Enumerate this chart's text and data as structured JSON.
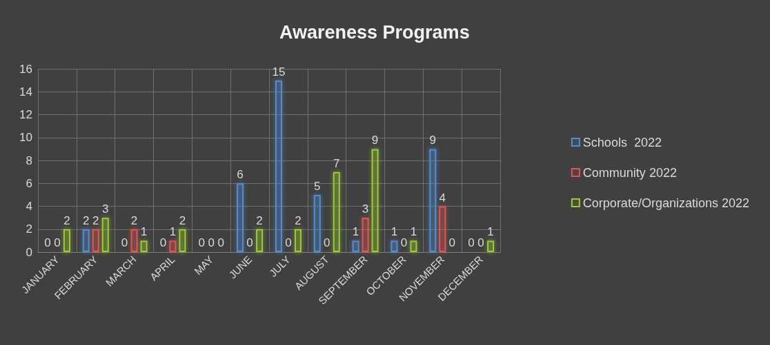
{
  "chart_data": {
    "type": "bar",
    "title": "Awareness Programs",
    "categories": [
      "JANUARY",
      "FEBRUARY",
      "MARCH",
      "APRIL",
      "MAY",
      "JUNE",
      "JULY",
      "AUGUST",
      "SEPTEMBER",
      "OCTOBER",
      "NOVEMBER",
      "DECEMBER"
    ],
    "series": [
      {
        "name": "Schools  2022",
        "color": "#4f8fd8",
        "values": [
          0,
          2,
          0,
          0,
          0,
          6,
          15,
          5,
          1,
          1,
          9,
          0
        ]
      },
      {
        "name": "Community 2022",
        "color": "#e05555",
        "values": [
          0,
          2,
          2,
          1,
          0,
          0,
          0,
          0,
          3,
          0,
          4,
          0
        ]
      },
      {
        "name": "Corporate/Organizations 2022",
        "color": "#9acd32",
        "values": [
          2,
          3,
          1,
          2,
          0,
          2,
          2,
          7,
          9,
          1,
          0,
          1
        ]
      }
    ],
    "ylim": [
      0,
      16
    ],
    "yticks": [
      0,
      2,
      4,
      6,
      8,
      10,
      12,
      14,
      16
    ],
    "grid": true,
    "legend": "right",
    "data_labels": true
  }
}
